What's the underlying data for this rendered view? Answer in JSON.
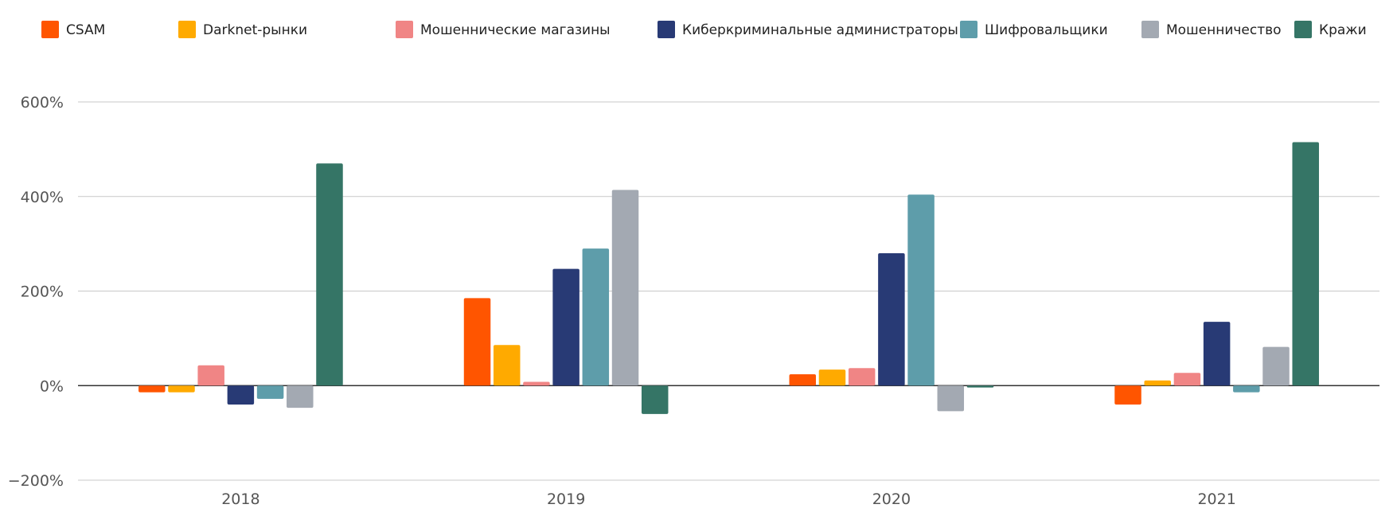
{
  "chart_data": {
    "type": "bar",
    "categories": [
      "2018",
      "2019",
      "2020",
      "2021"
    ],
    "series": [
      {
        "name": "CSAM",
        "color": "#FF5500",
        "values": [
          -14,
          185,
          24,
          -40
        ]
      },
      {
        "name": "Darknet-рынки",
        "color": "#FFAA00",
        "values": [
          -14,
          86,
          34,
          11
        ]
      },
      {
        "name": "Мошеннические магазины",
        "color": "#F08585",
        "values": [
          43,
          8,
          37,
          27
        ]
      },
      {
        "name": "Киберкриминальные администраторы",
        "color": "#283A75",
        "values": [
          -40,
          247,
          280,
          135
        ]
      },
      {
        "name": "Шифровальщики",
        "color": "#5E9DAA",
        "values": [
          -28,
          290,
          404,
          -14
        ]
      },
      {
        "name": "Мошенничество",
        "color": "#A3A9B2",
        "values": [
          -47,
          414,
          -54,
          82
        ]
      },
      {
        "name": "Кражи",
        "color": "#357566",
        "values": [
          470,
          -60,
          -4,
          515
        ]
      }
    ],
    "ylim": [
      -200,
      600
    ],
    "yticks": [
      {
        "value": 600,
        "label": "600%"
      },
      {
        "value": 400,
        "label": "400%"
      },
      {
        "value": 200,
        "label": "200%"
      },
      {
        "value": 0,
        "label": "0%"
      },
      {
        "value": -200,
        "label": "−200%"
      }
    ],
    "grid": true,
    "legend_position": "top"
  }
}
